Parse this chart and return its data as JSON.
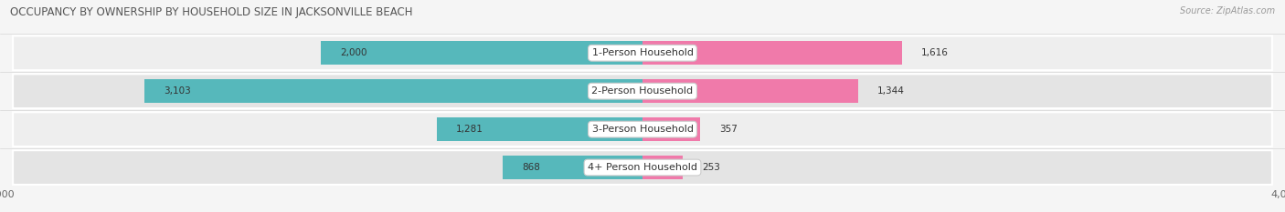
{
  "title": "OCCUPANCY BY OWNERSHIP BY HOUSEHOLD SIZE IN JACKSONVILLE BEACH",
  "source": "Source: ZipAtlas.com",
  "categories": [
    "1-Person Household",
    "2-Person Household",
    "3-Person Household",
    "4+ Person Household"
  ],
  "owner_values": [
    2000,
    3103,
    1281,
    868
  ],
  "renter_values": [
    1616,
    1344,
    357,
    253
  ],
  "max_scale": 4000,
  "owner_color": "#56b8bb",
  "renter_color": "#f07aaa",
  "row_bg_colors": [
    "#eeeeee",
    "#e4e4e4",
    "#eeeeee",
    "#e4e4e4"
  ],
  "title_fontsize": 8.5,
  "label_fontsize": 8,
  "value_fontsize": 7.5,
  "tick_fontsize": 8,
  "legend_fontsize": 8,
  "source_fontsize": 7
}
